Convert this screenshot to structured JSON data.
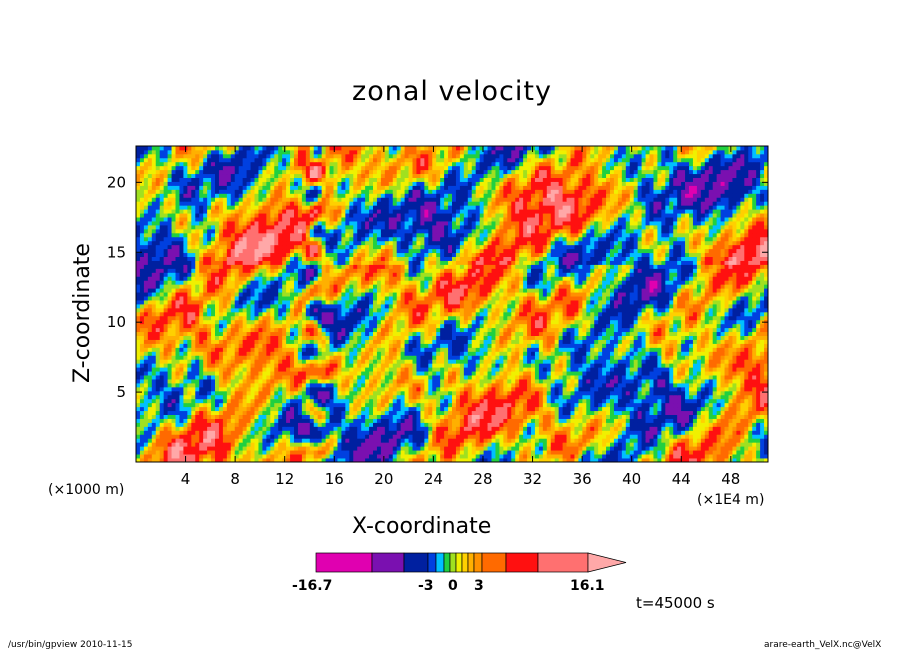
{
  "chart_data": {
    "type": "heatmap",
    "title": "zonal velocity",
    "xlabel": "X-coordinate",
    "ylabel": "Z-coordinate",
    "x_unit": "(×1E4 m)",
    "y_unit": "(×1000 m)",
    "xlim": [
      0,
      51
    ],
    "ylim": [
      0,
      22.6
    ],
    "x_ticks": [
      4,
      8,
      12,
      16,
      20,
      24,
      28,
      32,
      36,
      40,
      44,
      48
    ],
    "y_ticks": [
      5,
      10,
      15,
      20
    ],
    "z_range": [
      -16.7,
      16.1
    ],
    "colorbar": {
      "labels": [
        "-16.7",
        "-3",
        "0",
        "3",
        "16.1"
      ],
      "levels": [
        -16.7,
        -12,
        -8,
        -5,
        -3,
        -2,
        -1,
        0,
        1,
        2,
        3,
        4,
        6,
        9,
        12,
        16.1
      ],
      "colors": [
        "#e000b0",
        "#7a10b0",
        "#0020a0",
        "#0040e0",
        "#00c0ff",
        "#20d040",
        "#a0e020",
        "#f0f000",
        "#ffd000",
        "#ffb000",
        "#ff9000",
        "#ff6a00",
        "#ff1010",
        "#ff7070",
        "#ffa8a8"
      ]
    },
    "time_label": "t=45000 s",
    "footer_left": "/usr/bin/gpview   2010-11-15",
    "footer_right": "arare-earth_VelX.nc@VelX"
  }
}
